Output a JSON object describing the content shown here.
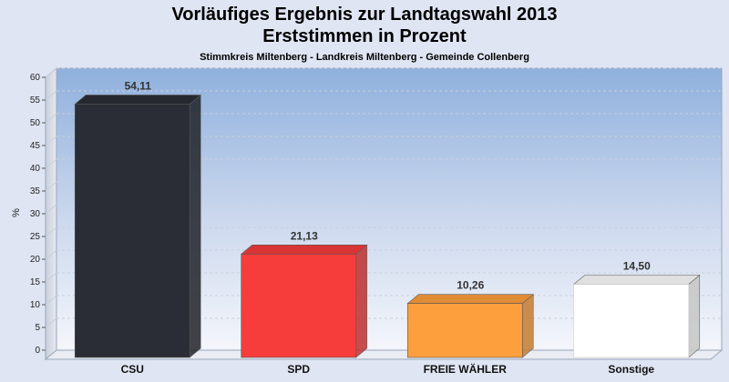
{
  "chart_data": {
    "type": "bar",
    "title": "Vorläufiges Ergebnis zur Landtagswahl 2013",
    "title_line2": "Erststimmen in Prozent",
    "subtitle": "Stimmkreis Miltenberg - Landkreis Miltenberg - Gemeinde Collenberg",
    "ylabel": "%",
    "xlabel": "",
    "ylim": [
      0,
      60
    ],
    "yticks": [
      0,
      5,
      10,
      15,
      20,
      25,
      30,
      35,
      40,
      45,
      50,
      55,
      60
    ],
    "categories": [
      "CSU",
      "SPD",
      "FREIE WÄHLER",
      "Sonstige"
    ],
    "values": [
      54.11,
      21.13,
      10.26,
      14.5
    ],
    "value_labels": [
      "54,11",
      "21,13",
      "10,26",
      "14,50"
    ],
    "colors": [
      "#2a2d35",
      "#f73c3c",
      "#fd9f3c",
      "#ffffff"
    ],
    "grid": true,
    "legend": "none"
  }
}
